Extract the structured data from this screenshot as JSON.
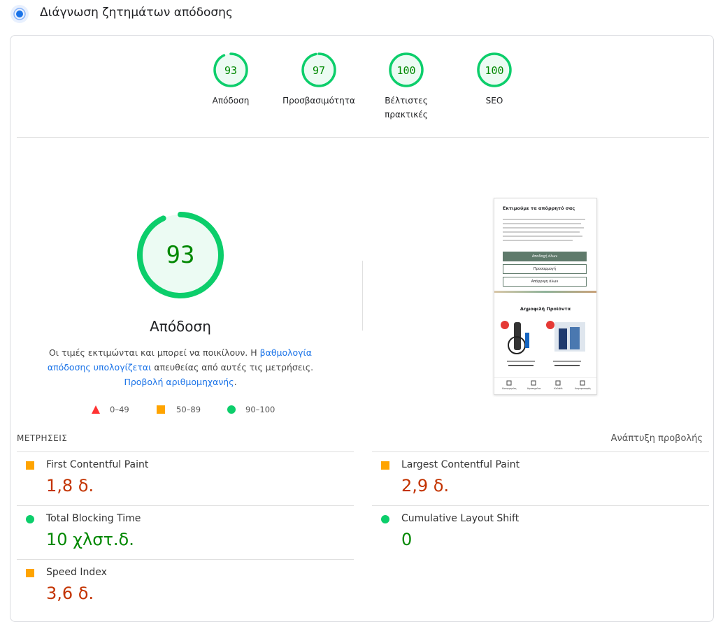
{
  "header": {
    "title": "Διάγνωση ζητημάτων απόδοσης"
  },
  "categories": [
    {
      "label": "Απόδοση",
      "score": 93
    },
    {
      "label": "Προσβασιμότητα",
      "score": 97
    },
    {
      "label": "Βέλτιστες πρακτικές",
      "score": 100
    },
    {
      "label": "SEO",
      "score": 100
    }
  ],
  "gauge": {
    "score": 93,
    "title": "Απόδοση"
  },
  "description": {
    "text1": "Οι τιμές εκτιμώνται και μπορεί να ποικίλουν. Η ",
    "link1": "βαθμολογία απόδοσης υπολογίζεται",
    "text2": " απευθείας από αυτές τις μετρήσεις. ",
    "link2": "Προβολή αριθμομηχανής",
    "text3": "."
  },
  "legend": [
    "0–49",
    "50–89",
    "90–100"
  ],
  "screenshot": {
    "title": "Εκτιμούμε τα απόρρητό σας",
    "buttons": [
      "Αποδοχή όλων",
      "Προσαρμογή",
      "Απόρριψη όλων"
    ],
    "heading": "Δημοφιλή Προϊόντα",
    "nav": [
      "Κατηγορίες",
      "Αγαπημένα",
      "Καλάθι",
      "Λογαριασμός"
    ]
  },
  "metrics": {
    "title": "ΜΕΤΡΗΣΕΙΣ",
    "expand": "Ανάπτυξη προβολής",
    "items": [
      {
        "name": "First Contentful Paint",
        "value": "1,8 δ.",
        "rating": "average"
      },
      {
        "name": "Largest Contentful Paint",
        "value": "2,9 δ.",
        "rating": "average"
      },
      {
        "name": "Total Blocking Time",
        "value": "10 χλστ.δ.",
        "rating": "pass"
      },
      {
        "name": "Cumulative Layout Shift",
        "value": "0",
        "rating": "pass"
      },
      {
        "name": "Speed Index",
        "value": "3,6 δ.",
        "rating": "average"
      }
    ]
  }
}
